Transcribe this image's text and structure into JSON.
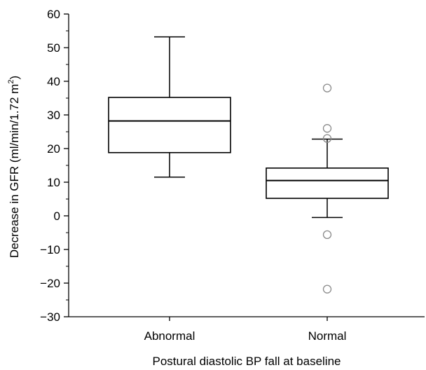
{
  "chart_data": {
    "type": "box",
    "xlabel": "Postural diastolic BP fall at baseline",
    "ylabel_main": "Decrease in GFR (ml/min/1.72 m",
    "ylabel_sup": "2",
    "ylabel_end": ")",
    "ylim": [
      -30,
      60
    ],
    "yticks": [
      -30,
      -20,
      -10,
      0,
      10,
      20,
      30,
      40,
      50,
      60
    ],
    "ytick_labels": [
      "−30",
      "−20",
      "−10",
      "0",
      "10",
      "20",
      "30",
      "40",
      "50",
      "60"
    ],
    "categories": [
      "Abnormal",
      "Normal"
    ],
    "boxes": [
      {
        "category": "Abnormal",
        "whisker_low": 11.5,
        "q1": 18.8,
        "median": 28.2,
        "q3": 35.2,
        "whisker_high": 53.2,
        "outliers": []
      },
      {
        "category": "Normal",
        "whisker_low": -0.5,
        "q1": 5.2,
        "median": 10.5,
        "q3": 14.2,
        "whisker_high": 22.8,
        "outliers": [
          38.0,
          26.0,
          23.0,
          -5.6,
          -21.8
        ]
      }
    ],
    "grid": false,
    "colors": {
      "stroke": "#000000",
      "outlier": "#8a8a8a",
      "fill": "#ffffff"
    }
  }
}
